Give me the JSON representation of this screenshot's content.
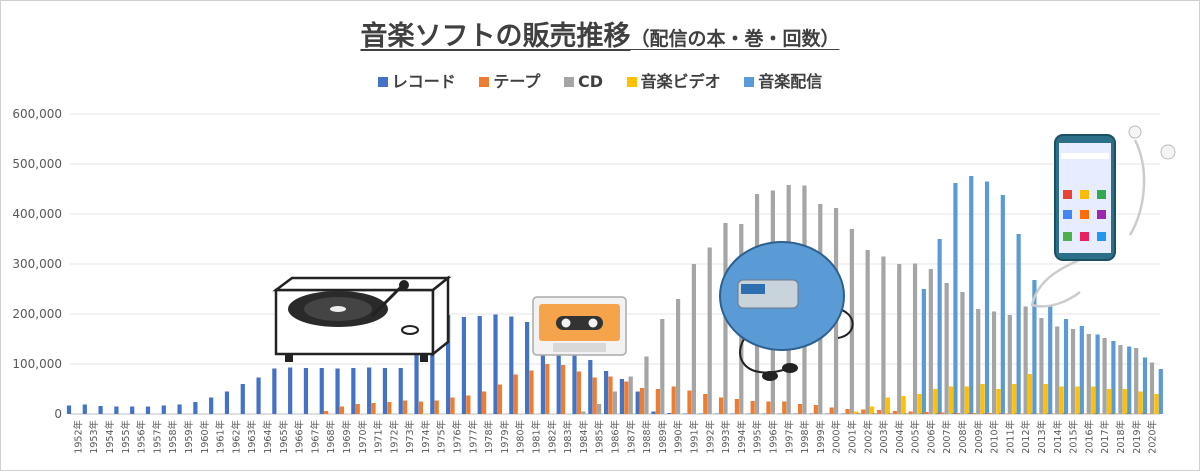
{
  "chart_data": {
    "type": "bar",
    "title": "音楽ソフトの販売推移",
    "subtitle": "（配信の本・巻・回数）",
    "xlabel": "",
    "ylabel": "",
    "ylim": [
      0,
      600000
    ],
    "yticks": [
      "0",
      "100,000",
      "200,000",
      "300,000",
      "400,000",
      "500,000",
      "600,000"
    ],
    "grid": true,
    "legend_position": "top",
    "categories": [
      "1952年",
      "1953年",
      "1954年",
      "1955年",
      "1956年",
      "1957年",
      "1958年",
      "1959年",
      "1960年",
      "1961年",
      "1962年",
      "1963年",
      "1964年",
      "1965年",
      "1966年",
      "1967年",
      "1968年",
      "1969年",
      "1970年",
      "1971年",
      "1972年",
      "1973年",
      "1974年",
      "1975年",
      "1976年",
      "1977年",
      "1978年",
      "1979年",
      "1980年",
      "1981年",
      "1982年",
      "1983年",
      "1984年",
      "1985年",
      "1986年",
      "1987年",
      "1988年",
      "1989年",
      "1990年",
      "1991年",
      "1992年",
      "1993年",
      "1994年",
      "1995年",
      "1996年",
      "1997年",
      "1998年",
      "1999年",
      "2000年",
      "2001年",
      "2002年",
      "2003年",
      "2004年",
      "2005年",
      "2006年",
      "2007年",
      "2008年",
      "2009年",
      "2010年",
      "2011年",
      "2012年",
      "2013年",
      "2014年",
      "2015年",
      "2016年",
      "2017年",
      "2018年",
      "2019年",
      "2020年"
    ],
    "series": [
      {
        "name": "レコード",
        "color": "#4472c4",
        "values": [
          17000,
          19000,
          16000,
          15000,
          15000,
          15000,
          17000,
          19000,
          24000,
          33000,
          45000,
          60000,
          73000,
          91000,
          93000,
          92000,
          92000,
          91000,
          92000,
          93000,
          92000,
          92000,
          155000,
          178000,
          198000,
          194000,
          196000,
          199000,
          195000,
          184000,
          165000,
          145000,
          127000,
          108000,
          86000,
          70000,
          45000,
          5000,
          2000,
          1000,
          1000,
          1000,
          1000,
          1000,
          1000,
          1000,
          1000,
          1000,
          1000,
          1000,
          1000,
          1000,
          1000,
          1000,
          1000,
          1000,
          1000,
          1000,
          1000,
          1000,
          1000,
          1000,
          1000,
          1000,
          1000,
          1000,
          1000,
          1000,
          1000
        ]
      },
      {
        "name": "テープ",
        "color": "#ed7d31",
        "values": [
          0,
          0,
          0,
          0,
          0,
          0,
          0,
          0,
          0,
          0,
          0,
          0,
          0,
          0,
          0,
          0,
          6000,
          15000,
          20000,
          22000,
          24000,
          27000,
          25000,
          27000,
          33000,
          37000,
          45000,
          59000,
          79000,
          87000,
          100000,
          98000,
          85000,
          73000,
          75000,
          65000,
          52000,
          50000,
          55000,
          47000,
          40000,
          33000,
          30000,
          26000,
          25000,
          25000,
          20000,
          18000,
          13000,
          10000,
          9000,
          8000,
          6000,
          5000,
          4000,
          3000,
          2000,
          2000,
          2000,
          1000,
          1000,
          1000,
          1000,
          1000,
          1000,
          1000,
          1000,
          1000,
          1000
        ]
      },
      {
        "name": "CD",
        "color": "#a5a5a5",
        "values": [
          0,
          0,
          0,
          0,
          0,
          0,
          0,
          0,
          0,
          0,
          0,
          0,
          0,
          0,
          0,
          0,
          0,
          0,
          0,
          0,
          0,
          0,
          0,
          0,
          0,
          0,
          0,
          0,
          0,
          0,
          0,
          0,
          5000,
          20000,
          45000,
          75000,
          115000,
          190000,
          230000,
          300000,
          333000,
          382000,
          380000,
          440000,
          447000,
          458000,
          457000,
          420000,
          412000,
          370000,
          328000,
          315000,
          300000,
          301000,
          290000,
          262000,
          244000,
          210000,
          205000,
          198000,
          215000,
          192000,
          175000,
          170000,
          160000,
          152000,
          138000,
          132000,
          103000
        ]
      },
      {
        "name": "音楽ビデオ",
        "color": "#ffc000",
        "values": [
          0,
          0,
          0,
          0,
          0,
          0,
          0,
          0,
          0,
          0,
          0,
          0,
          0,
          0,
          0,
          0,
          0,
          0,
          0,
          0,
          0,
          0,
          0,
          0,
          0,
          0,
          0,
          0,
          0,
          0,
          0,
          0,
          0,
          0,
          0,
          0,
          0,
          0,
          0,
          0,
          0,
          0,
          0,
          0,
          0,
          0,
          0,
          0,
          0,
          5000,
          15000,
          33000,
          36000,
          40000,
          50000,
          55000,
          55000,
          60000,
          50000,
          60000,
          80000,
          60000,
          55000,
          55000,
          55000,
          50000,
          50000,
          45000,
          40000
        ]
      },
      {
        "name": "音楽配信",
        "color": "#5b9bd5",
        "values": [
          0,
          0,
          0,
          0,
          0,
          0,
          0,
          0,
          0,
          0,
          0,
          0,
          0,
          0,
          0,
          0,
          0,
          0,
          0,
          0,
          0,
          0,
          0,
          0,
          0,
          0,
          0,
          0,
          0,
          0,
          0,
          0,
          0,
          0,
          0,
          0,
          0,
          0,
          0,
          0,
          0,
          0,
          0,
          0,
          0,
          0,
          0,
          0,
          0,
          0,
          0,
          0,
          0,
          250000,
          350000,
          462000,
          476000,
          465000,
          438000,
          360000,
          268000,
          215000,
          190000,
          176000,
          159000,
          146000,
          135000,
          113000,
          90000
        ]
      }
    ]
  }
}
